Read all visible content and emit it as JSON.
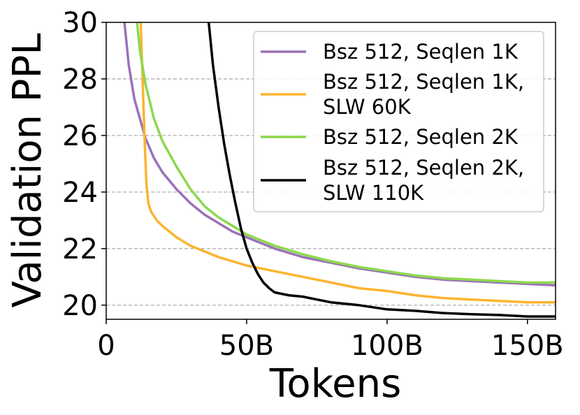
{
  "chart_data": {
    "type": "line",
    "xlabel": "Tokens",
    "ylabel": "Validation PPL",
    "xlim": [
      0,
      160
    ],
    "ylim": [
      19.5,
      30
    ],
    "x_ticks": [
      {
        "value": 0,
        "label": "0"
      },
      {
        "value": 50,
        "label": "50B"
      },
      {
        "value": 100,
        "label": "100B"
      },
      {
        "value": 150,
        "label": "150B"
      }
    ],
    "y_ticks": [
      {
        "value": 20,
        "label": "20"
      },
      {
        "value": 22,
        "label": "22"
      },
      {
        "value": 24,
        "label": "24"
      },
      {
        "value": 26,
        "label": "26"
      },
      {
        "value": 28,
        "label": "28"
      },
      {
        "value": 30,
        "label": "30"
      }
    ],
    "grid": "horizontal dashed",
    "legend_position": "top-right",
    "series": [
      {
        "name": "Bsz 512, Seqlen 1K",
        "legend_lines": [
          "Bsz 512, Seqlen 1K"
        ],
        "color": "#9b72b8",
        "x": [
          6.5,
          8,
          10,
          12,
          14,
          17,
          20,
          25,
          30,
          35,
          40,
          45,
          50,
          60,
          70,
          80,
          90,
          100,
          110,
          120,
          130,
          140,
          150,
          160
        ],
        "y": [
          30,
          28.5,
          27.3,
          26.6,
          25.9,
          25.2,
          24.7,
          24.1,
          23.6,
          23.2,
          22.9,
          22.6,
          22.4,
          22.0,
          21.7,
          21.5,
          21.3,
          21.15,
          21.0,
          20.9,
          20.85,
          20.8,
          20.75,
          20.7
        ]
      },
      {
        "name": "Bsz 512, Seqlen 1K, SLW 60K",
        "legend_lines": [
          "Bsz 512, Seqlen 1K,",
          "SLW 60K"
        ],
        "color": "#fbb430",
        "x": [
          12.3,
          12.8,
          13.3,
          13.8,
          14.3,
          15,
          16,
          18,
          20,
          25,
          30,
          40,
          50,
          60,
          70,
          80,
          90,
          100,
          110,
          120,
          130,
          140,
          150,
          160
        ],
        "y": [
          30,
          28.5,
          27,
          25.5,
          24.3,
          23.6,
          23.3,
          23.0,
          22.8,
          22.4,
          22.1,
          21.7,
          21.4,
          21.2,
          21.0,
          20.8,
          20.6,
          20.5,
          20.35,
          20.25,
          20.2,
          20.15,
          20.1,
          20.1
        ]
      },
      {
        "name": "Bsz 512, Seqlen 2K",
        "legend_lines": [
          "Bsz 512, Seqlen 2K"
        ],
        "color": "#8cd94c",
        "x": [
          11,
          12,
          14,
          17,
          20,
          25,
          30,
          35,
          40,
          45,
          50,
          60,
          70,
          80,
          90,
          100,
          110,
          120,
          130,
          140,
          150,
          160
        ],
        "y": [
          30,
          29,
          27.8,
          26.6,
          25.8,
          24.9,
          24.1,
          23.5,
          23.1,
          22.8,
          22.5,
          22.1,
          21.8,
          21.55,
          21.35,
          21.2,
          21.05,
          20.95,
          20.9,
          20.85,
          20.8,
          20.8
        ]
      },
      {
        "name": "Bsz 512, Seqlen 2K, SLW 110K",
        "legend_lines": [
          "Bsz 512, Seqlen 2K,",
          "SLW 110K"
        ],
        "color": "#000000",
        "x": [
          36.5,
          38,
          40,
          42,
          44,
          46,
          48,
          50,
          52,
          54,
          56,
          58,
          60,
          65,
          70,
          75,
          80,
          90,
          100,
          110,
          120,
          130,
          140,
          150,
          160
        ],
        "y": [
          30,
          28.5,
          27,
          25.7,
          24.6,
          23.6,
          22.7,
          22.0,
          21.5,
          21.1,
          20.8,
          20.6,
          20.45,
          20.35,
          20.3,
          20.2,
          20.1,
          20.0,
          19.85,
          19.8,
          19.72,
          19.68,
          19.65,
          19.6,
          19.6
        ]
      }
    ]
  }
}
